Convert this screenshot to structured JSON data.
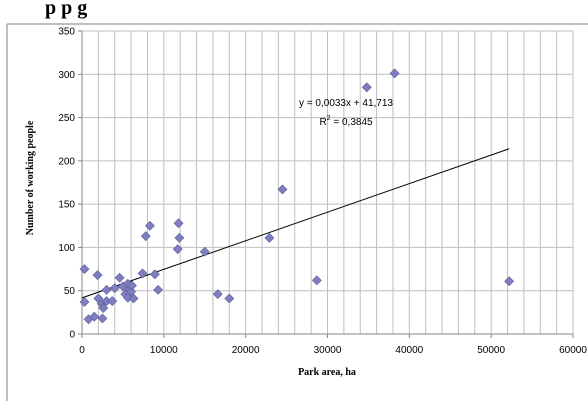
{
  "chart_data": {
    "type": "scatter",
    "title": "",
    "xlabel": "Park area, ha",
    "ylabel": "Number of working people",
    "xlim": [
      0,
      60000
    ],
    "ylim": [
      0,
      350
    ],
    "xticks": [
      0,
      10000,
      20000,
      30000,
      40000,
      50000,
      60000
    ],
    "yticks": [
      0,
      50,
      100,
      150,
      200,
      250,
      300,
      350
    ],
    "grid": true,
    "legend": "none",
    "marker_color": "#7f7fbf",
    "series": [
      {
        "points": [
          [
            300,
            75
          ],
          [
            300,
            37
          ],
          [
            800,
            17
          ],
          [
            1500,
            20
          ],
          [
            1900,
            68
          ],
          [
            2000,
            41
          ],
          [
            2400,
            35
          ],
          [
            2500,
            18
          ],
          [
            2600,
            30
          ],
          [
            3000,
            51
          ],
          [
            3000,
            38
          ],
          [
            3700,
            38
          ],
          [
            4000,
            53
          ],
          [
            4600,
            65
          ],
          [
            5000,
            55
          ],
          [
            5300,
            46
          ],
          [
            5600,
            42
          ],
          [
            5600,
            58
          ],
          [
            5800,
            51
          ],
          [
            6000,
            49
          ],
          [
            6100,
            56
          ],
          [
            6300,
            41
          ],
          [
            7400,
            70
          ],
          [
            7800,
            113
          ],
          [
            8300,
            125
          ],
          [
            8900,
            69
          ],
          [
            9300,
            51
          ],
          [
            11700,
            98
          ],
          [
            11800,
            128
          ],
          [
            11900,
            111
          ],
          [
            15000,
            95
          ],
          [
            16600,
            46
          ],
          [
            18000,
            41
          ],
          [
            22900,
            111
          ],
          [
            24500,
            167
          ],
          [
            28700,
            62
          ],
          [
            34800,
            285
          ],
          [
            38200,
            301
          ],
          [
            52200,
            61
          ]
        ]
      }
    ],
    "trendline": {
      "type": "linear",
      "slope": 0.0033,
      "intercept": 41.713,
      "x_range": [
        0,
        52200
      ],
      "equation": "y = 0,0033x + 41,713",
      "r2_prefix": "R",
      "r2_sup": "2",
      "r2_value": " = 0,3845"
    },
    "top_title_fragment": "p p g"
  }
}
